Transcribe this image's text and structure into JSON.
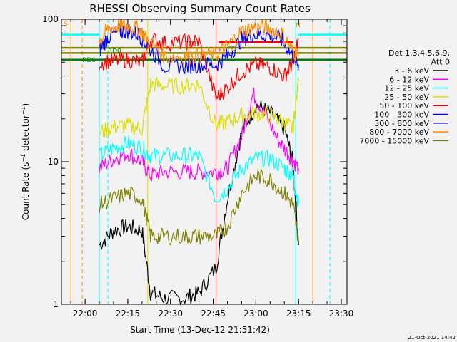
{
  "chart_data": {
    "type": "line",
    "title": "RHESSI Observing Summary Count Rates",
    "xlabel": "Start Time (13-Dec-12 21:51:42)",
    "ylabel": "Count Rate (s^-1 detector^-1)",
    "ylabel_main": "Count Rate (s",
    "ylabel_sup1": "−1",
    "ylabel_mid": " detector",
    "ylabel_sup2": "−1",
    "ylabel_end": ")",
    "yscale": "log",
    "ylim": [
      1,
      100
    ],
    "xlim": [
      "21:51:42",
      "23:32:00"
    ],
    "xticks": [
      "22:00",
      "22:15",
      "22:30",
      "22:45",
      "23:00",
      "23:15",
      "23:30"
    ],
    "yticks": [
      "1",
      "10",
      "100"
    ],
    "grid": false,
    "legend_header": [
      "Det 1,3,4,5,6,9,",
      "Att 0"
    ],
    "legend_placement": "right",
    "series": [
      {
        "name": "3 - 6 keV",
        "color": "#000000",
        "x": [
          "22:05",
          "22:10",
          "22:15",
          "22:20",
          "22:23",
          "22:28",
          "22:35",
          "22:40",
          "22:46",
          "22:50",
          "22:55",
          "23:00",
          "23:05",
          "23:10",
          "23:13",
          "23:15"
        ],
        "y": [
          2.6,
          3.3,
          3.5,
          3.3,
          1.2,
          1.1,
          1.1,
          1.2,
          1.8,
          5.5,
          16,
          25,
          22,
          17,
          10,
          2.6
        ]
      },
      {
        "name": "6 - 12 keV",
        "color": "#ff00ff",
        "x": [
          "22:05",
          "22:10",
          "22:15",
          "22:20",
          "22:23",
          "22:28",
          "22:35",
          "22:40",
          "22:46",
          "22:50",
          "22:55",
          "22:59",
          "23:03",
          "23:08",
          "23:12",
          "23:15"
        ],
        "y": [
          9,
          10.5,
          11.5,
          10,
          8,
          8.5,
          8.5,
          8.5,
          8.5,
          9,
          15,
          30,
          22,
          14,
          11,
          9
        ]
      },
      {
        "name": "12 - 25 keV",
        "color": "#00ffff",
        "x": [
          "22:05",
          "22:10",
          "22:15",
          "22:20",
          "22:23",
          "22:28",
          "22:35",
          "22:40",
          "22:46",
          "22:50",
          "22:55",
          "23:00",
          "23:05",
          "23:10",
          "23:13",
          "23:15"
        ],
        "y": [
          11,
          12.5,
          13.5,
          12.5,
          11,
          11,
          11,
          11,
          5.5,
          6.5,
          9,
          10.5,
          10.5,
          9,
          8,
          5
        ]
      },
      {
        "name": "25 - 50 keV",
        "color": "#dddd00",
        "x": [
          "22:05",
          "22:10",
          "22:15",
          "22:20",
          "22:23",
          "22:28",
          "22:35",
          "22:40",
          "22:46",
          "22:50",
          "22:55",
          "23:00",
          "23:05",
          "23:10",
          "23:13",
          "23:15"
        ],
        "y": [
          16,
          17.5,
          18,
          17,
          35,
          34,
          34,
          35,
          18,
          19,
          21,
          22,
          21,
          19,
          17,
          37
        ]
      },
      {
        "name": "50 - 100 keV",
        "color": "#ff0000",
        "x": [
          "22:05",
          "22:10",
          "22:15",
          "22:20",
          "22:23",
          "22:28",
          "22:35",
          "22:40",
          "22:46",
          "22:50",
          "22:55",
          "23:00",
          "23:05",
          "23:10",
          "23:13",
          "23:15"
        ],
        "y": [
          50,
          51,
          52,
          49,
          72,
          68,
          69,
          70,
          28,
          33,
          43,
          48,
          46,
          40,
          50,
          72
        ]
      },
      {
        "name": "100 - 300 keV",
        "color": "#0000ff",
        "x": [
          "22:05",
          "22:08",
          "22:12",
          "22:15",
          "22:19",
          "22:22",
          "22:28",
          "22:35",
          "22:40",
          "22:46",
          "22:50",
          "22:55",
          "22:59",
          "23:04",
          "23:09",
          "23:13",
          "23:15"
        ],
        "y": [
          60,
          75,
          82,
          83,
          78,
          65,
          47,
          47,
          48,
          48,
          55,
          72,
          78,
          78,
          72,
          55,
          48
        ]
      },
      {
        "name": "800 - 7000 keV",
        "color": "#ff8c00",
        "x": [
          "22:05",
          "22:08",
          "22:12",
          "22:15",
          "22:19",
          "22:22",
          "22:28",
          "22:35",
          "22:40",
          "22:46",
          "22:50",
          "22:55",
          "22:59",
          "23:04",
          "23:09",
          "23:13",
          "23:15"
        ],
        "y": [
          70,
          85,
          90,
          90,
          85,
          72,
          55,
          55,
          56,
          56,
          65,
          82,
          88,
          87,
          80,
          60,
          55
        ]
      },
      {
        "name": "7000 - 15000 keV",
        "color": "#808000",
        "x": [
          "22:05",
          "22:10",
          "22:15",
          "22:20",
          "22:23",
          "22:28",
          "22:35",
          "22:40",
          "22:46",
          "22:50",
          "22:55",
          "23:00",
          "23:05",
          "23:10",
          "23:13",
          "23:15"
        ],
        "y": [
          5,
          5.5,
          6,
          5.5,
          3,
          3,
          3,
          3,
          3,
          3.5,
          6,
          8,
          7.5,
          6,
          5,
          2.8
        ]
      }
    ],
    "legend_extra": [
      {
        "name": "300 - 800 keV",
        "color": "#0000aa"
      }
    ],
    "hlines": [
      {
        "y": 63,
        "color": "#808000",
        "x": [
          "21:51:42",
          "23:32:00"
        ]
      },
      {
        "y": 58,
        "color": "#808000",
        "x": [
          "21:51:42",
          "23:32:00"
        ]
      },
      {
        "y": 52,
        "color": "#008000",
        "x": [
          "21:51:42",
          "23:32:00"
        ]
      },
      {
        "y": 78,
        "color": "#00ffff",
        "x": [
          "21:51:42",
          "22:05"
        ]
      },
      {
        "y": 78,
        "color": "#00ffff",
        "x": [
          "23:15",
          "23:32:00"
        ]
      },
      {
        "y": 69,
        "color": "#ff0000",
        "x": [
          "22:47",
          "23:13"
        ]
      }
    ],
    "vlines": [
      {
        "x": "21:55",
        "color": "#ff8c00",
        "dash": false
      },
      {
        "x": "21:59",
        "color": "#ff8c00",
        "dash": true
      },
      {
        "x": "22:08",
        "color": "#00ffff",
        "dash": true
      },
      {
        "x": "22:05",
        "color": "#00ffff",
        "dash": false
      },
      {
        "x": "22:22",
        "color": "#dddd00",
        "dash": false
      },
      {
        "x": "22:46",
        "color": "#ff0000",
        "dash": false
      },
      {
        "x": "23:14",
        "color": "#00ffff",
        "dash": false
      },
      {
        "x": "23:20",
        "color": "#ff8c00",
        "dash": false
      },
      {
        "x": "23:26",
        "color": "#00ffff",
        "dash": true
      }
    ],
    "annotations": [
      {
        "text": "S",
        "color": "#ff8c00",
        "x": "21:52:30",
        "y": 90
      },
      {
        "text": "RD0",
        "color": "#008000",
        "x": "22:08",
        "y": 58
      },
      {
        "text": "RD6",
        "color": "#008000",
        "x": "21:59",
        "y": 50
      },
      {
        "text": "FD1",
        "color": "#ff0000",
        "x": "22:35",
        "y": 65
      },
      {
        "text": "FD",
        "color": "#808000",
        "x": "22:50",
        "y": 60
      },
      {
        "text": "N",
        "color": "#ff8c00",
        "x": "23:14",
        "y": 88
      }
    ]
  },
  "footer": {
    "timestamp": "21-Oct-2021 14:42"
  }
}
